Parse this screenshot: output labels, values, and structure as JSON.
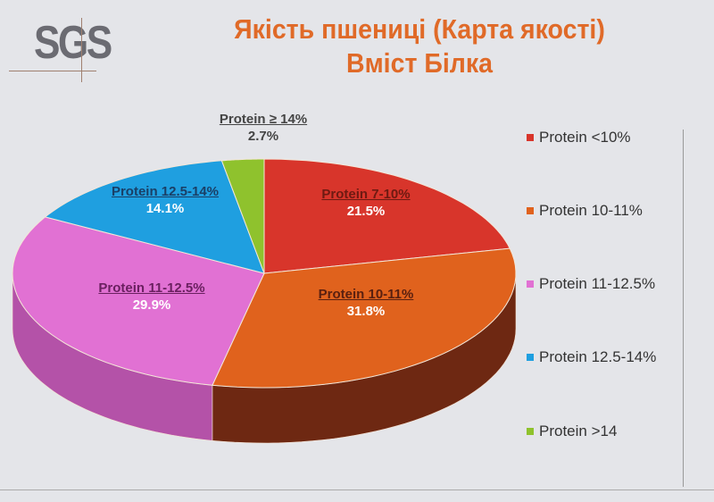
{
  "logo": "SGS",
  "chart_data": {
    "type": "pie",
    "title": "Якість пшениці (Карта якості)",
    "subtitle": "Вміст Білка",
    "slices": [
      {
        "label": "Protein 7-10%",
        "legend": "Protein <10%",
        "value": 21.5,
        "value_label": "21.5%",
        "color": "#d8352b",
        "side": "#8e2119"
      },
      {
        "label": "Protein 10-11%",
        "legend": "Protein 10-11%",
        "value": 31.8,
        "value_label": "31.8%",
        "color": "#e0621d",
        "side": "#6e2812"
      },
      {
        "label": "Protein 11-12.5%",
        "legend": "Protein 11-12.5%",
        "value": 29.9,
        "value_label": "29.9%",
        "color": "#e171d3",
        "side": "#b452a8"
      },
      {
        "label": "Protein 12.5-14%",
        "legend": "Protein 12.5-14%",
        "value": 14.1,
        "value_label": "14.1%",
        "color": "#1f9fe0",
        "side": "#136a99"
      },
      {
        "label": "Protein ≥ 14%",
        "legend": "Protein >14",
        "value": 2.7,
        "value_label": "2.7%",
        "color": "#8fc22d",
        "side": "#5e8219"
      }
    ],
    "legend_position": "right"
  }
}
